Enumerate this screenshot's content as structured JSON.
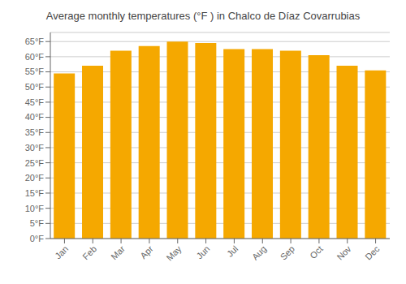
{
  "chart_data": {
    "type": "bar",
    "title": "Average monthly temperatures (°F ) in Chalco de Díaz Covarrubias",
    "categories": [
      "Jan",
      "Feb",
      "Mar",
      "Apr",
      "May",
      "Jun",
      "Jul",
      "Aug",
      "Sep",
      "Oct",
      "Nov",
      "Dec"
    ],
    "values": [
      54.5,
      57.0,
      62.0,
      63.5,
      65.0,
      64.5,
      62.5,
      62.5,
      62.0,
      60.5,
      57.0,
      55.5
    ],
    "color": "#F5A800",
    "ylim": [
      0,
      68
    ],
    "yticks": [
      {
        "value": 0,
        "label": "0°F"
      },
      {
        "value": 5,
        "label": "5°F"
      },
      {
        "value": 10,
        "label": "10°F"
      },
      {
        "value": 15,
        "label": "15°F"
      },
      {
        "value": 20,
        "label": "20°F"
      },
      {
        "value": 25,
        "label": "25°F"
      },
      {
        "value": 30,
        "label": "30°F"
      },
      {
        "value": 35,
        "label": "35°F"
      },
      {
        "value": 40,
        "label": "40°F"
      },
      {
        "value": 45,
        "label": "45°F"
      },
      {
        "value": 50,
        "label": "50°F"
      },
      {
        "value": 55,
        "label": "55°F"
      },
      {
        "value": 60,
        "label": "60°F"
      },
      {
        "value": 65,
        "label": "65°F"
      }
    ],
    "grid": true
  }
}
